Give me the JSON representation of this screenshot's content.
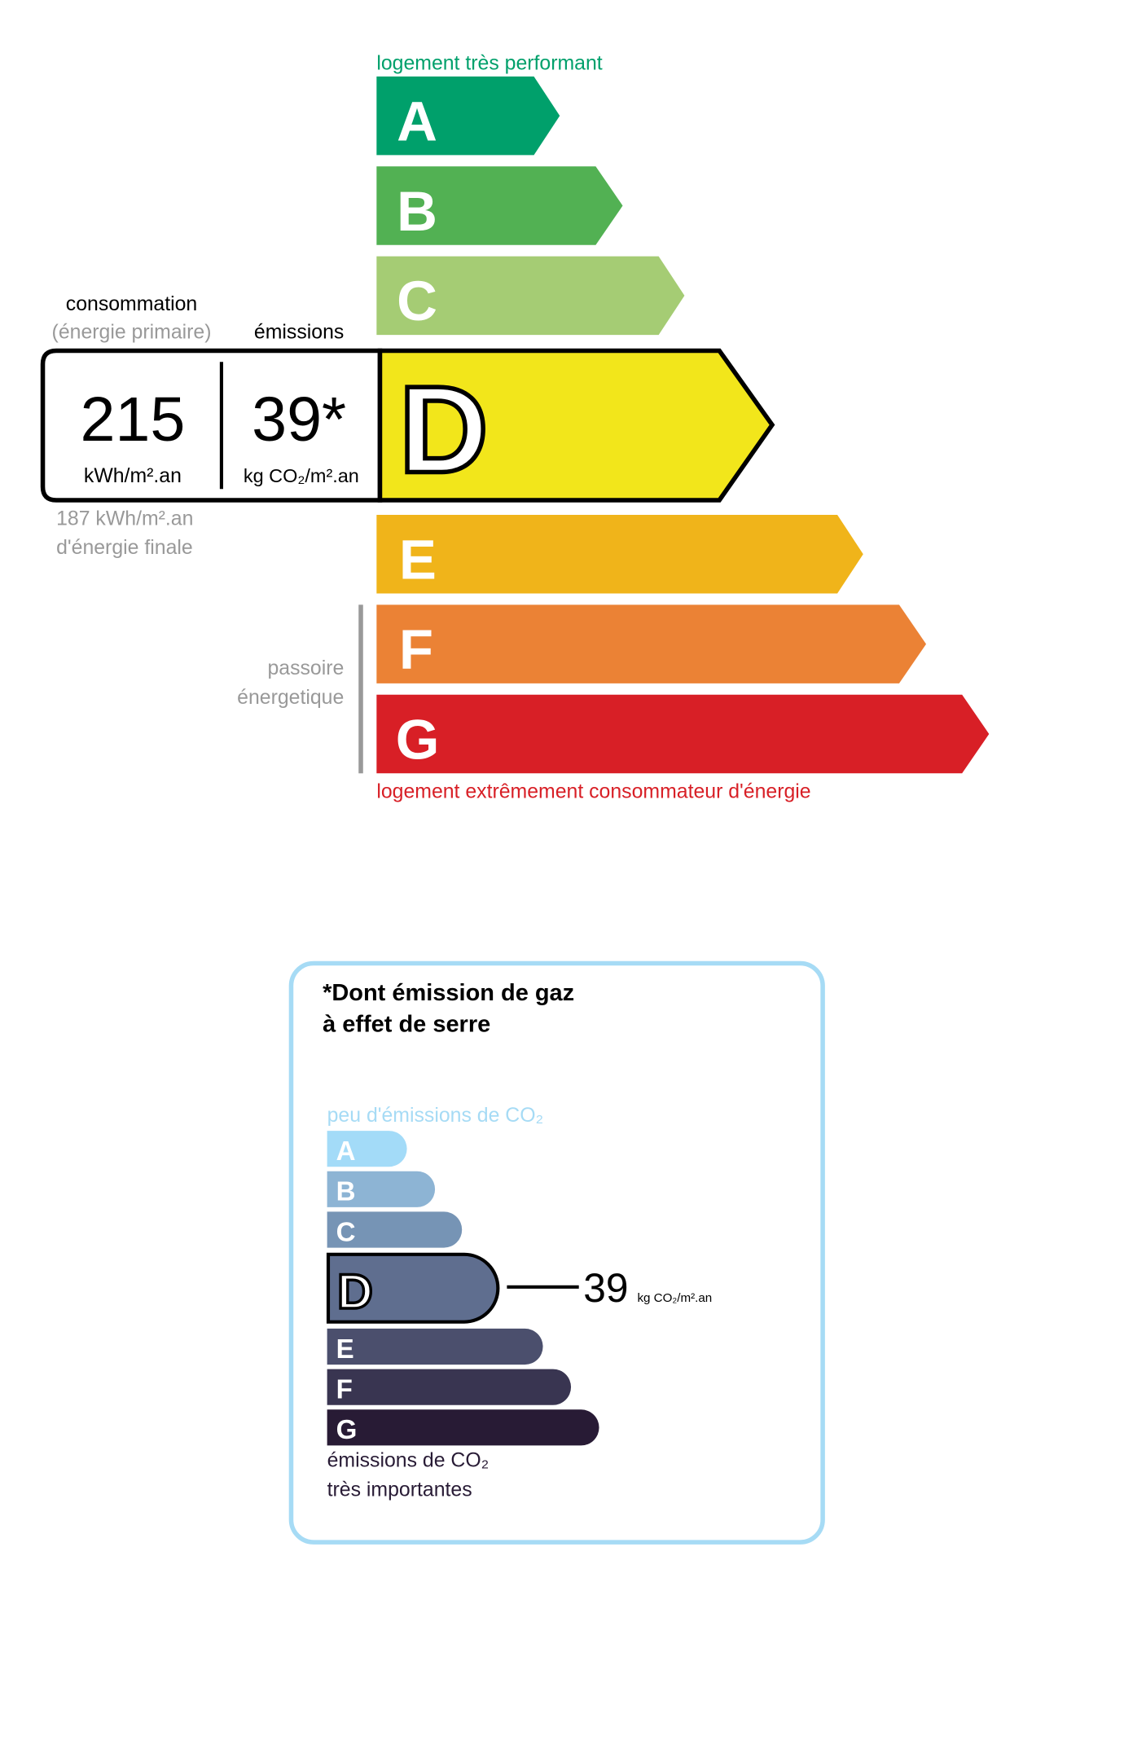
{
  "energy": {
    "top_label": "logement très performant",
    "bottom_label": "logement extrêmement consommateur d'énergie",
    "top_color": "#00a06b",
    "bottom_color": "#d81f26",
    "classes": [
      {
        "letter": "A",
        "color": "#00a06b"
      },
      {
        "letter": "B",
        "color": "#52b153"
      },
      {
        "letter": "C",
        "color": "#a5cc74"
      },
      {
        "letter": "D",
        "color": "#f2e61b"
      },
      {
        "letter": "E",
        "color": "#f0b41a"
      },
      {
        "letter": "F",
        "color": "#eb8235"
      },
      {
        "letter": "G",
        "color": "#d81f26"
      }
    ],
    "current_class": "D",
    "consumption_label": "consommation",
    "consumption_sub": "(énergie primaire)",
    "emissions_label": "émissions",
    "consumption_value": "215",
    "consumption_unit": "kWh/m².an",
    "emissions_value": "39*",
    "emissions_unit": "kg CO₂/m².an",
    "final_energy_value": "187 kWh/m².an",
    "final_energy_label": "d'énergie finale",
    "passoire_line1": "passoire",
    "passoire_line2": "énergetique"
  },
  "ges": {
    "title_line1": "*Dont émission de gaz",
    "title_line2": "à effet de serre",
    "top_label": "peu d'émissions de CO₂",
    "bottom_line1": "émissions de CO₂",
    "bottom_line2": "très importantes",
    "border_color": "#a6dbf5",
    "classes": [
      {
        "letter": "A",
        "color": "#a3dbf8"
      },
      {
        "letter": "B",
        "color": "#8db4d4"
      },
      {
        "letter": "C",
        "color": "#7694b5"
      },
      {
        "letter": "D",
        "color": "#5f6e8f"
      },
      {
        "letter": "E",
        "color": "#4b4f6d"
      },
      {
        "letter": "F",
        "color": "#393551"
      },
      {
        "letter": "G",
        "color": "#281b35"
      }
    ],
    "current_class": "D",
    "value": "39",
    "unit": "kg CO₂/m².an"
  }
}
